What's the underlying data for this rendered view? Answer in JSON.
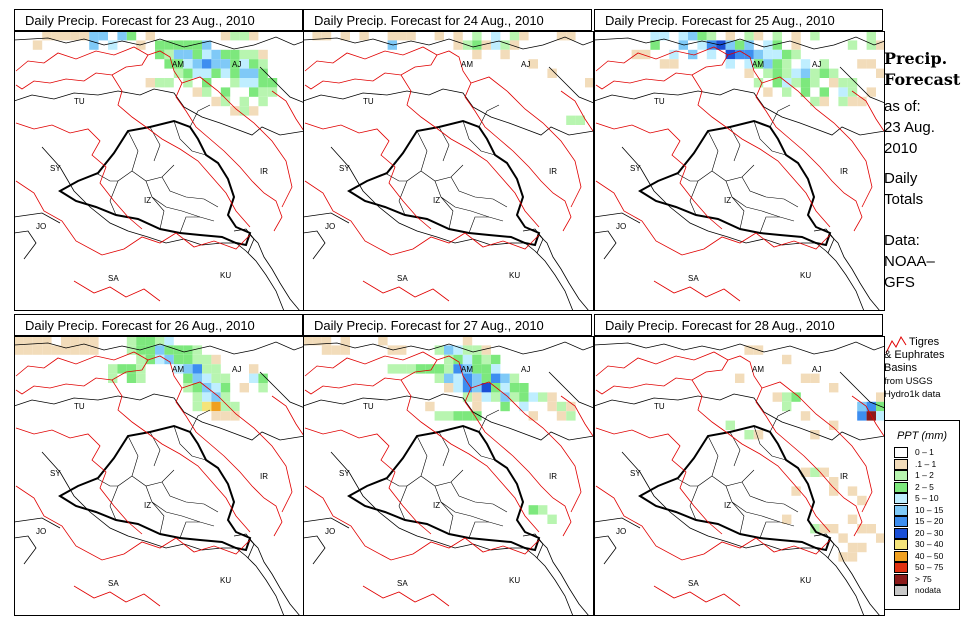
{
  "panels": [
    {
      "title": "Daily Precip. Forecast for  23 Aug., 2010"
    },
    {
      "title": "Daily Precip. Forecast for  24 Aug., 2010"
    },
    {
      "title": "Daily Precip. Forecast for  25 Aug., 2010"
    },
    {
      "title": "Daily Precip. Forecast for  26 Aug., 2010"
    },
    {
      "title": "Daily Precip. Forecast for  27 Aug., 2010"
    },
    {
      "title": "Daily Precip. Forecast for  28 Aug., 2010"
    }
  ],
  "map_labels": {
    "am": "AM",
    "aj": "AJ",
    "tu": "TU",
    "sy": "SY",
    "ir": "IR",
    "iz": "IZ",
    "jo": "JO",
    "sa": "SA",
    "ku": "KU"
  },
  "side": {
    "title_line1": "Precip.",
    "title_line2": "Forecast",
    "asof": "as of:",
    "date_line1": "23 Aug.",
    "date_line2": "2010",
    "daily_line1": "Daily",
    "daily_line2": "Totals",
    "data_line1": "Data:",
    "data_line2": "NOAA–",
    "data_line3": "GFS"
  },
  "basin_note": {
    "line1": "Tigres",
    "line2": "& Euphrates",
    "line3": "Basins",
    "line4": "from USGS",
    "line5": "Hydro1k data"
  },
  "legend": {
    "title": "PPT (mm)",
    "items": [
      {
        "label": "0 – 1",
        "color": "#ffffff"
      },
      {
        "label": ".1 – 1",
        "color": "#f2dcba"
      },
      {
        "label": "1 – 2",
        "color": "#b8f5b0"
      },
      {
        "label": "2 – 5",
        "color": "#7de87d"
      },
      {
        "label": "5 – 10",
        "color": "#bfeeff"
      },
      {
        "label": "10 – 15",
        "color": "#7fc9f7"
      },
      {
        "label": "15 – 20",
        "color": "#3d8ef0"
      },
      {
        "label": "20 – 30",
        "color": "#1a4fd6"
      },
      {
        "label": "30 – 40",
        "color": "#f5e47a"
      },
      {
        "label": "40 – 50",
        "color": "#f0a020"
      },
      {
        "label": "50 – 75",
        "color": "#e03010"
      },
      {
        "label": "> 75",
        "color": "#8b1a1a"
      },
      {
        "label": "nodata",
        "color": "#c8c8c8"
      }
    ]
  },
  "colors": {
    "basin_outline": "#e00000",
    "border": "#000000",
    "water": "#e8eef8"
  }
}
